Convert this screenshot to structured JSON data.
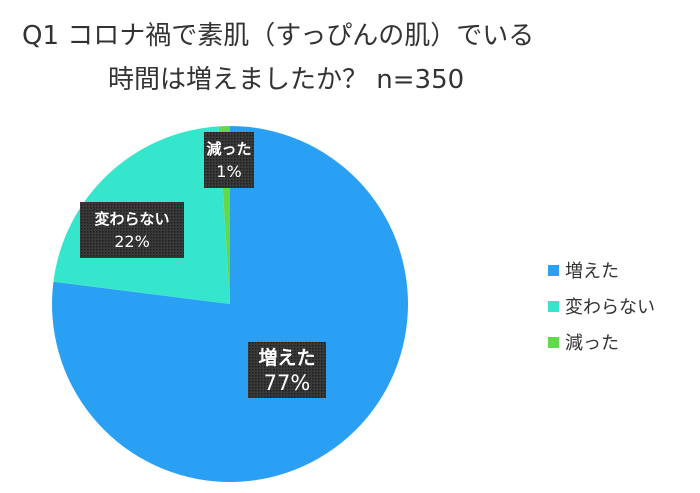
{
  "chart_data": {
    "type": "pie",
    "title_line1": "Q1 コロナ禍で素肌（すっぴんの肌）でいる",
    "title_line2": "時間は増えましたか？ n=350",
    "slices": [
      {
        "name": "増えた",
        "value": 77,
        "label": "77%",
        "color": "#2aa0f5"
      },
      {
        "name": "変わらない",
        "value": 22,
        "label": "22%",
        "color": "#36e6cc"
      },
      {
        "name": "減った",
        "value": 1,
        "label": "1%",
        "color": "#62d84a"
      }
    ],
    "legend_position": "right"
  }
}
